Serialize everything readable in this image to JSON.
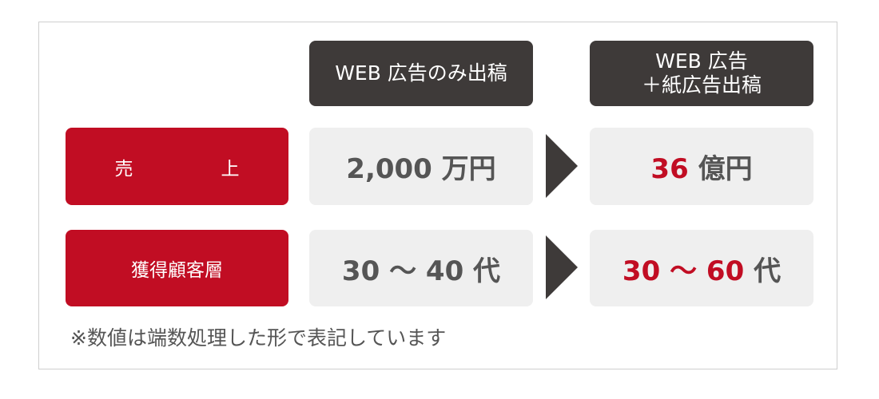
{
  "headers": [
    "WEB 広告のみ出稿",
    "WEB 広告",
    "＋紙広告出稿"
  ],
  "rows": [
    {
      "label_a": "売",
      "label_b": "上",
      "before": "2,000 万円",
      "after_num": "36",
      "after_unit": " 億円"
    },
    {
      "label": "獲得顧客層",
      "before": "30 〜 40 代",
      "after_num": "30 〜 60",
      "after_unit": " 代"
    }
  ],
  "footnote": "※数値は端数処理した形で表記しています",
  "colors": {
    "accent": "#c10d23",
    "header": "#3e3a39",
    "cell": "#efefef",
    "text": "#555555"
  }
}
